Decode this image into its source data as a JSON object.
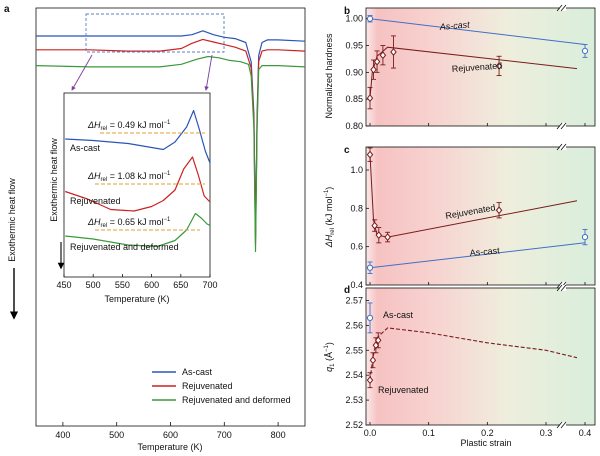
{
  "chart_data": [
    {
      "panel": "a",
      "type": "line",
      "xlabel": "Temperature (K)",
      "ylabel": "Exothermic heat flow",
      "xlim": [
        350,
        850
      ],
      "xticks": [
        400,
        500,
        600,
        700,
        800
      ],
      "legend_position": "bottom-right",
      "series": [
        {
          "name": "As-cast",
          "color": "#2a55b8",
          "x": [
            350,
            450,
            550,
            620,
            640,
            660,
            680,
            700,
            720,
            740,
            750,
            755,
            758,
            761,
            764,
            770,
            780,
            800,
            850
          ],
          "y": [
            0.0,
            0.0,
            0.0,
            0.0,
            0.01,
            0.04,
            0.01,
            -0.01,
            -0.02,
            -0.05,
            -0.2,
            -0.6,
            -1.55,
            -0.6,
            -0.15,
            -0.05,
            -0.03,
            -0.03,
            -0.04
          ]
        },
        {
          "name": "Rejuvenated",
          "color": "#cc2222",
          "x": [
            350,
            450,
            520,
            580,
            620,
            640,
            660,
            680,
            700,
            720,
            740,
            750,
            755,
            758,
            761,
            764,
            770,
            780,
            800,
            850
          ],
          "y": [
            -0.06,
            -0.06,
            -0.07,
            -0.07,
            -0.05,
            -0.01,
            0.02,
            0.0,
            -0.02,
            -0.04,
            -0.07,
            -0.2,
            -0.6,
            -1.55,
            -0.6,
            -0.15,
            -0.07,
            -0.06,
            -0.06,
            -0.07
          ]
        },
        {
          "name": "Rejuvenated and deformed",
          "color": "#3a9a3a",
          "x": [
            350,
            450,
            520,
            580,
            620,
            650,
            670,
            690,
            710,
            730,
            745,
            750,
            755,
            758,
            761,
            764,
            770,
            780,
            800,
            850
          ],
          "y": [
            -0.12,
            -0.13,
            -0.13,
            -0.13,
            -0.11,
            -0.07,
            -0.05,
            -0.06,
            -0.08,
            -0.09,
            -0.11,
            -0.2,
            -0.6,
            -1.55,
            -0.6,
            -0.15,
            -0.12,
            -0.12,
            -0.12,
            -0.13
          ]
        }
      ]
    },
    {
      "panel": "a-inset",
      "type": "line",
      "xlabel": "Temperature (K)",
      "ylabel": "Exothermic heat flow",
      "xlim": [
        450,
        700
      ],
      "xticks": [
        450,
        500,
        550,
        600,
        650,
        700
      ],
      "series": [
        {
          "name": "As-cast",
          "dH": "0.49 kJ mol⁻¹",
          "color": "#2a55b8",
          "x": [
            452,
            500,
            560,
            620,
            640,
            660,
            672,
            682,
            692,
            700
          ],
          "y": [
            -0.2,
            -0.25,
            -0.35,
            -0.55,
            -0.3,
            0.2,
            0.75,
            0.1,
            -0.6,
            -1.0
          ]
        },
        {
          "name": "Rejuvenated",
          "dH": "1.08 kJ mol⁻¹",
          "color": "#cc2222",
          "x": [
            452,
            490,
            530,
            570,
            600,
            620,
            640,
            655,
            670,
            680,
            690,
            700
          ],
          "y": [
            -0.25,
            -0.5,
            -0.85,
            -0.9,
            -0.75,
            -0.55,
            -0.2,
            0.5,
            0.9,
            0.3,
            -0.4,
            -0.6
          ]
        },
        {
          "name": "Rejuvenated and deformed",
          "dH": "0.65 kJ mol⁻¹",
          "color": "#3a9a3a",
          "x": [
            452,
            500,
            560,
            610,
            640,
            660,
            675,
            685,
            695,
            700
          ],
          "y": [
            -0.2,
            -0.3,
            -0.5,
            -0.55,
            -0.35,
            0.0,
            0.55,
            0.4,
            0.2,
            0.15
          ]
        }
      ]
    },
    {
      "panel": "b",
      "type": "scatter",
      "xlabel": "Plastic strain",
      "ylabel": "Normalized hardness",
      "ylim": [
        0.8,
        1.02
      ],
      "yticks": [
        0.8,
        0.85,
        0.9,
        0.95,
        1.0
      ],
      "series": [
        {
          "name": "As-cast",
          "color": "#3f6fc9",
          "points": [
            [
              0.0,
              1.0,
              0.006
            ],
            [
              0.4,
              0.94,
              0.012
            ]
          ],
          "line": [
            [
              0.0,
              1.0
            ],
            [
              0.4,
              0.952
            ]
          ]
        },
        {
          "name": "Rejuvenated",
          "color": "#7a1c1c",
          "points": [
            [
              0.0,
              0.852,
              0.02
            ],
            [
              0.006,
              0.905,
              0.018
            ],
            [
              0.012,
              0.92,
              0.02
            ],
            [
              0.022,
              0.932,
              0.018
            ],
            [
              0.04,
              0.938,
              0.03
            ],
            [
              0.22,
              0.912,
              0.018
            ]
          ],
          "line": [
            [
              0.0,
              0.852
            ],
            [
              0.004,
              0.9
            ],
            [
              0.012,
              0.93
            ],
            [
              0.03,
              0.947
            ],
            [
              0.38,
              0.907
            ]
          ]
        }
      ]
    },
    {
      "panel": "c",
      "type": "scatter",
      "xlabel": "Plastic strain",
      "ylabel": "ΔH_rel (kJ mol⁻¹)",
      "ylim": [
        0.4,
        1.12
      ],
      "yticks": [
        0.4,
        0.6,
        0.8,
        1.0
      ],
      "series": [
        {
          "name": "As-cast",
          "color": "#3f6fc9",
          "points": [
            [
              0.0,
              0.49,
              0.03
            ],
            [
              0.4,
              0.65,
              0.04
            ]
          ],
          "line": [
            [
              0.0,
              0.49
            ],
            [
              0.4,
              0.62
            ]
          ]
        },
        {
          "name": "Rejuvenated",
          "color": "#7a1c1c",
          "points": [
            [
              0.0,
              1.08,
              0.035
            ],
            [
              0.008,
              0.71,
              0.03
            ],
            [
              0.015,
              0.66,
              0.04
            ],
            [
              0.03,
              0.65,
              0.025
            ],
            [
              0.22,
              0.79,
              0.04
            ]
          ],
          "line": [
            [
              0.0,
              1.08
            ],
            [
              0.006,
              0.74
            ],
            [
              0.012,
              0.66
            ],
            [
              0.03,
              0.65
            ],
            [
              0.38,
              0.84
            ]
          ]
        }
      ]
    },
    {
      "panel": "d",
      "type": "scatter",
      "xlabel": "Plastic strain",
      "ylabel": "q₁ (Å⁻¹)",
      "ylim": [
        2.52,
        2.575
      ],
      "xticks": [
        0.0,
        0.1,
        0.2,
        0.3,
        0.4
      ],
      "yticks": [
        2.52,
        2.53,
        2.54,
        2.55,
        2.56,
        2.57
      ],
      "series": [
        {
          "name": "As-cast",
          "color": "#3f6fc9",
          "points": [
            [
              0.0,
              2.563,
              0.006
            ]
          ]
        },
        {
          "name": "Rejuvenated",
          "color": "#7a1c1c",
          "points": [
            [
              0.0,
              2.538,
              0.003
            ],
            [
              0.005,
              2.546,
              0.003
            ],
            [
              0.01,
              2.552,
              0.003
            ],
            [
              0.014,
              2.554,
              0.003
            ]
          ],
          "dashed_line": [
            [
              0.0,
              2.538
            ],
            [
              0.005,
              2.547
            ],
            [
              0.012,
              2.555
            ],
            [
              0.03,
              2.559
            ],
            [
              0.1,
              2.557
            ],
            [
              0.2,
              2.553
            ],
            [
              0.3,
              2.55
            ],
            [
              0.38,
              2.547
            ]
          ]
        }
      ]
    }
  ],
  "labels": {
    "panel_a": "a",
    "panel_b": "b",
    "panel_c": "c",
    "panel_d": "d",
    "legend_ascast": "As-cast",
    "legend_rejuv": "Rejuvenated",
    "legend_rejdef": "Rejuvenated and deformed",
    "dH_prefix": "ΔH",
    "dH_sub": "rel",
    "dH_ascast_val": " = 0.49 kJ mol",
    "dH_rejuv_val": " = 1.08 kJ mol",
    "dH_rejdef_val": " = 0.65 kJ mol",
    "inv": "−1",
    "inset_ascast": "As-cast",
    "inset_rejuv": "Rejuvenated",
    "inset_rejdef": "Rejuvenated and deformed",
    "inset_ylabel": "Exothermic heat flow",
    "inset_xlabel": "Temperature (K)",
    "main_xlabel": "Temperature (K)",
    "main_ylabel": "Exothermic heat flow",
    "b_ylabel": "Normalized hardness",
    "b_ascast": "As-cast",
    "b_rejuv": "Rejuvenated",
    "c_ylabel_pre": "ΔH",
    "c_ylabel_sub": "rel",
    "c_ylabel_post": " (kJ mol",
    "c_ylabel_end": ")",
    "c_ascast": "As-cast",
    "c_rejuv": "Rejuvenated",
    "d_ylabel_pre": "q",
    "d_ylabel_sub": "1",
    "d_ylabel_post": " (Å",
    "d_ylabel_end": ")",
    "d_ascast": "As-cast",
    "d_rejuv": "Rejuvenated",
    "strain_xlabel": "Plastic strain"
  }
}
